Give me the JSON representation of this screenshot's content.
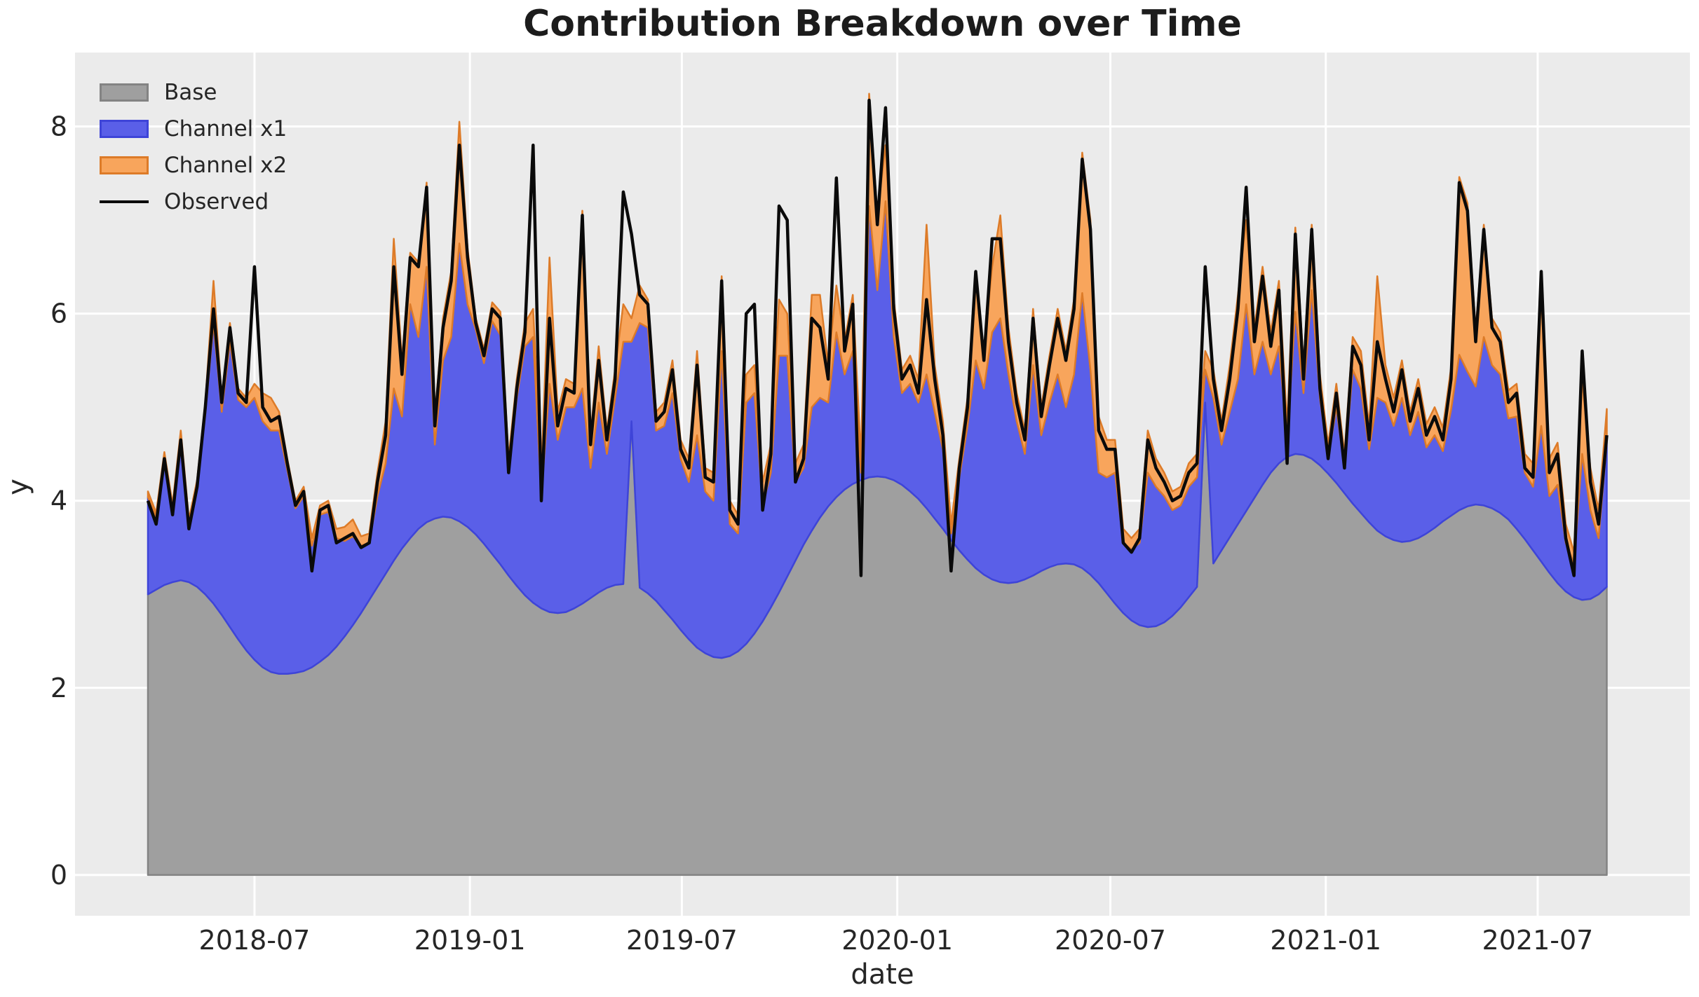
{
  "title": "Contribution Breakdown over Time",
  "axes": {
    "xlabel": "date",
    "ylabel": "y",
    "x_tick_labels": [
      "2018-07",
      "2019-01",
      "2019-07",
      "2020-01",
      "2020-07",
      "2021-01",
      "2021-07"
    ],
    "x_tick_days": [
      91,
      275,
      456,
      640,
      822,
      1006,
      1187
    ],
    "y_tick_labels": [
      "0",
      "2",
      "4",
      "6",
      "8"
    ],
    "y_tick_values": [
      0,
      2,
      4,
      6,
      8
    ]
  },
  "legend": {
    "items": [
      {
        "label": "Base",
        "type": "patch",
        "fill": "#9f9f9f",
        "edge": "#838383"
      },
      {
        "label": "Channel x1",
        "type": "patch",
        "fill": "#5a5fe8",
        "edge": "#3e44d8"
      },
      {
        "label": "Channel x2",
        "type": "patch",
        "fill": "#f8a55c",
        "edge": "#dd7b28"
      },
      {
        "label": "Observed",
        "type": "line",
        "color": "#0a0a0a"
      }
    ]
  },
  "colors": {
    "figure_bg": "#ffffff",
    "plot_bg": "#ebebeb",
    "grid": "#ffffff",
    "base_fill": "#9f9f9f",
    "base_edge": "#838383",
    "x1_fill": "#5a5fe8",
    "x1_edge": "#3e44d8",
    "x2_fill": "#f8a55c",
    "x2_edge": "#dd7b28",
    "observed": "#0a0a0a",
    "text": "#262626"
  },
  "chart_data": {
    "type": "area",
    "stacked": true,
    "title": "Contribution Breakdown over Time",
    "xlabel": "date",
    "ylabel": "y",
    "x_start_date": "2018-04-01",
    "x_end_date": "2021-08-29",
    "frequency": "weekly",
    "n_points": 179,
    "ylim": [
      -0.435,
      8.79
    ],
    "grid": true,
    "legend_position": "upper left",
    "series": [
      {
        "name": "Base",
        "role": "stack",
        "values": [
          3.0,
          3.05,
          3.1,
          3.13,
          3.15,
          3.13,
          3.08,
          3.0,
          2.9,
          2.78,
          2.65,
          2.52,
          2.4,
          2.3,
          2.22,
          2.17,
          2.15,
          2.15,
          2.16,
          2.18,
          2.22,
          2.28,
          2.35,
          2.44,
          2.55,
          2.67,
          2.8,
          2.94,
          3.08,
          3.22,
          3.36,
          3.49,
          3.6,
          3.7,
          3.77,
          3.81,
          3.83,
          3.82,
          3.78,
          3.72,
          3.64,
          3.54,
          3.43,
          3.32,
          3.2,
          3.09,
          2.99,
          2.91,
          2.85,
          2.81,
          2.8,
          2.81,
          2.85,
          2.9,
          2.96,
          3.02,
          3.07,
          3.1,
          3.11,
          4.85,
          3.07,
          3.01,
          2.93,
          2.83,
          2.73,
          2.62,
          2.52,
          2.43,
          2.37,
          2.33,
          2.32,
          2.34,
          2.39,
          2.47,
          2.58,
          2.71,
          2.86,
          3.02,
          3.19,
          3.36,
          3.53,
          3.68,
          3.82,
          3.94,
          4.04,
          4.12,
          4.18,
          4.22,
          4.25,
          4.26,
          4.25,
          4.22,
          4.17,
          4.1,
          4.02,
          3.92,
          3.81,
          3.7,
          3.58,
          3.47,
          3.37,
          3.28,
          3.21,
          3.16,
          3.13,
          3.12,
          3.13,
          3.16,
          3.2,
          3.25,
          3.29,
          3.32,
          3.33,
          3.32,
          3.28,
          3.21,
          3.12,
          3.01,
          2.9,
          2.8,
          2.72,
          2.67,
          2.65,
          2.66,
          2.7,
          2.77,
          2.86,
          2.97,
          3.08,
          5.05,
          3.33,
          3.47,
          3.61,
          3.75,
          3.89,
          4.03,
          4.17,
          4.3,
          4.4,
          4.47,
          4.5,
          4.49,
          4.45,
          4.38,
          4.29,
          4.19,
          4.08,
          3.97,
          3.87,
          3.77,
          3.68,
          3.62,
          3.58,
          3.56,
          3.57,
          3.6,
          3.65,
          3.71,
          3.78,
          3.84,
          3.9,
          3.94,
          3.96,
          3.95,
          3.92,
          3.87,
          3.8,
          3.7,
          3.59,
          3.47,
          3.35,
          3.23,
          3.12,
          3.03,
          2.97,
          2.94,
          2.95,
          3.0,
          3.08
        ]
      },
      {
        "name": "Channel x1",
        "role": "stack",
        "values": [
          1.04,
          0.77,
          1.34,
          0.78,
          1.5,
          0.62,
          1.07,
          1.93,
          3.0,
          2.17,
          3.05,
          2.56,
          2.6,
          2.8,
          2.63,
          2.58,
          2.6,
          2.18,
          1.76,
          1.87,
          1.3,
          1.57,
          1.53,
          1.16,
          1.02,
          0.95,
          0.72,
          0.61,
          0.97,
          1.18,
          1.84,
          1.41,
          2.5,
          2.05,
          2.73,
          0.79,
          1.67,
          1.93,
          2.97,
          2.38,
          2.19,
          1.93,
          2.49,
          2.45,
          1.1,
          2.01,
          2.66,
          2.84,
          1.2,
          2.44,
          1.85,
          2.19,
          2.15,
          2.3,
          1.39,
          2.03,
          1.43,
          2.0,
          2.59,
          0.85,
          2.83,
          2.84,
          1.82,
          1.97,
          2.42,
          1.83,
          1.68,
          2.27,
          1.73,
          1.67,
          3.28,
          1.41,
          1.26,
          2.58,
          2.57,
          1.24,
          1.44,
          2.53,
          2.36,
          0.84,
          0.82,
          1.32,
          1.28,
          1.11,
          1.76,
          1.23,
          1.42,
          0.08,
          2.9,
          1.99,
          2.95,
          1.53,
          0.98,
          1.15,
          1.03,
          1.43,
          1.14,
          0.85,
          0.07,
          0.78,
          1.43,
          2.22,
          1.99,
          2.64,
          2.82,
          2.23,
          1.72,
          1.34,
          2.25,
          1.45,
          1.76,
          2.03,
          1.67,
          2.03,
          2.94,
          2.19,
          1.18,
          1.24,
          1.4,
          0.75,
          0.76,
          0.88,
          1.65,
          1.49,
          1.35,
          1.13,
          1.09,
          1.18,
          1.17,
          0.35,
          1.77,
          1.13,
          1.34,
          1.55,
          2.21,
          1.32,
          1.53,
          1.05,
          1.25,
          0.18,
          1.52,
          0.66,
          1.8,
          0.72,
          0.16,
          0.81,
          0.27,
          1.43,
          1.33,
          0.78,
          1.42,
          1.43,
          1.22,
          1.54,
          1.13,
          1.35,
          0.92,
          0.99,
          0.75,
          1.13,
          1.66,
          1.44,
          1.26,
          1.8,
          1.53,
          1.48,
          1.08,
          1.2,
          0.71,
          0.68,
          1.45,
          0.82,
          1.05,
          0.52,
          0.36,
          1.56,
          0.95,
          0.6,
          1.55
        ]
      },
      {
        "name": "Channel x2",
        "role": "stack",
        "values": [
          0.06,
          0.05,
          0.08,
          0.05,
          0.1,
          0.05,
          0.07,
          0.12,
          0.45,
          0.15,
          0.2,
          0.12,
          0.1,
          0.15,
          0.3,
          0.35,
          0.2,
          0.12,
          0.08,
          0.1,
          0.08,
          0.1,
          0.12,
          0.1,
          0.15,
          0.18,
          0.1,
          0.1,
          0.25,
          0.45,
          1.6,
          0.6,
          0.55,
          0.8,
          0.9,
          0.3,
          0.45,
          0.7,
          1.3,
          0.6,
          0.12,
          0.15,
          0.2,
          0.25,
          0.15,
          0.2,
          0.25,
          0.3,
          0.25,
          1.35,
          0.3,
          0.3,
          0.25,
          1.9,
          0.35,
          0.6,
          0.25,
          0.3,
          0.4,
          0.25,
          0.4,
          0.3,
          0.2,
          0.25,
          0.35,
          0.2,
          0.25,
          0.9,
          0.25,
          0.3,
          0.8,
          0.25,
          0.2,
          0.3,
          0.3,
          0.25,
          0.3,
          0.6,
          0.45,
          0.2,
          0.25,
          1.2,
          1.1,
          0.4,
          0.5,
          0.35,
          0.6,
          0.15,
          1.2,
          0.8,
          0.6,
          0.4,
          0.25,
          0.3,
          0.25,
          1.6,
          0.5,
          0.3,
          0.1,
          0.2,
          0.3,
          0.9,
          0.4,
          0.7,
          1.1,
          0.5,
          0.3,
          0.25,
          0.6,
          0.3,
          0.5,
          0.7,
          0.6,
          0.8,
          1.5,
          1.6,
          0.6,
          0.4,
          0.35,
          0.15,
          0.12,
          0.15,
          0.45,
          0.3,
          0.25,
          0.2,
          0.2,
          0.25,
          0.25,
          0.2,
          0.3,
          0.25,
          0.5,
          0.9,
          0.9,
          0.5,
          0.8,
          0.45,
          0.7,
          0.15,
          0.9,
          0.3,
          0.7,
          0.25,
          0.15,
          0.25,
          0.15,
          0.35,
          0.4,
          0.25,
          1.3,
          0.4,
          0.3,
          0.4,
          0.25,
          0.35,
          0.25,
          0.3,
          0.25,
          0.45,
          1.9,
          1.8,
          0.6,
          1.2,
          0.5,
          0.45,
          0.3,
          0.35,
          0.2,
          0.25,
          1.4,
          0.4,
          0.45,
          0.2,
          0.12,
          0.8,
          0.45,
          0.3,
          0.35
        ]
      },
      {
        "name": "Observed",
        "role": "line",
        "values": [
          4.0,
          3.75,
          4.45,
          3.85,
          4.65,
          3.7,
          4.15,
          5.0,
          6.05,
          5.05,
          5.85,
          5.15,
          5.05,
          6.5,
          5.0,
          4.85,
          4.9,
          4.4,
          3.95,
          4.1,
          3.25,
          3.9,
          3.95,
          3.55,
          3.6,
          3.65,
          3.5,
          3.55,
          4.2,
          4.7,
          6.5,
          5.35,
          6.6,
          6.5,
          7.35,
          4.8,
          5.85,
          6.35,
          7.8,
          6.6,
          5.9,
          5.55,
          6.05,
          5.95,
          4.3,
          5.2,
          5.8,
          7.8,
          4.0,
          5.95,
          4.8,
          5.2,
          5.15,
          7.05,
          4.6,
          5.5,
          4.65,
          5.3,
          7.3,
          6.85,
          6.2,
          6.1,
          4.85,
          4.95,
          5.4,
          4.55,
          4.35,
          5.45,
          4.25,
          4.2,
          6.35,
          3.9,
          3.75,
          6.0,
          6.1,
          3.9,
          4.5,
          7.15,
          7.0,
          4.2,
          4.45,
          5.95,
          5.85,
          5.3,
          7.45,
          5.6,
          6.1,
          3.2,
          8.28,
          6.95,
          8.2,
          6.05,
          5.3,
          5.45,
          5.15,
          6.15,
          5.3,
          4.7,
          3.25,
          4.35,
          5.0,
          6.45,
          5.5,
          6.8,
          6.8,
          5.7,
          5.05,
          4.65,
          5.95,
          4.9,
          5.45,
          5.95,
          5.5,
          6.05,
          7.65,
          6.9,
          4.75,
          4.55,
          4.55,
          3.55,
          3.45,
          3.6,
          4.65,
          4.35,
          4.2,
          4.0,
          4.05,
          4.3,
          4.4,
          6.5,
          5.3,
          4.75,
          5.3,
          6.05,
          7.35,
          5.7,
          6.4,
          5.65,
          6.25,
          4.4,
          6.85,
          5.3,
          6.9,
          5.2,
          4.45,
          5.15,
          4.35,
          5.65,
          5.45,
          4.65,
          5.7,
          5.3,
          4.95,
          5.4,
          4.85,
          5.2,
          4.7,
          4.9,
          4.65,
          5.3,
          7.4,
          7.1,
          5.7,
          6.9,
          5.85,
          5.7,
          5.05,
          5.15,
          4.35,
          4.25,
          6.45,
          4.3,
          4.5,
          3.6,
          3.2,
          5.6,
          4.2,
          3.75,
          4.7
        ]
      }
    ]
  }
}
